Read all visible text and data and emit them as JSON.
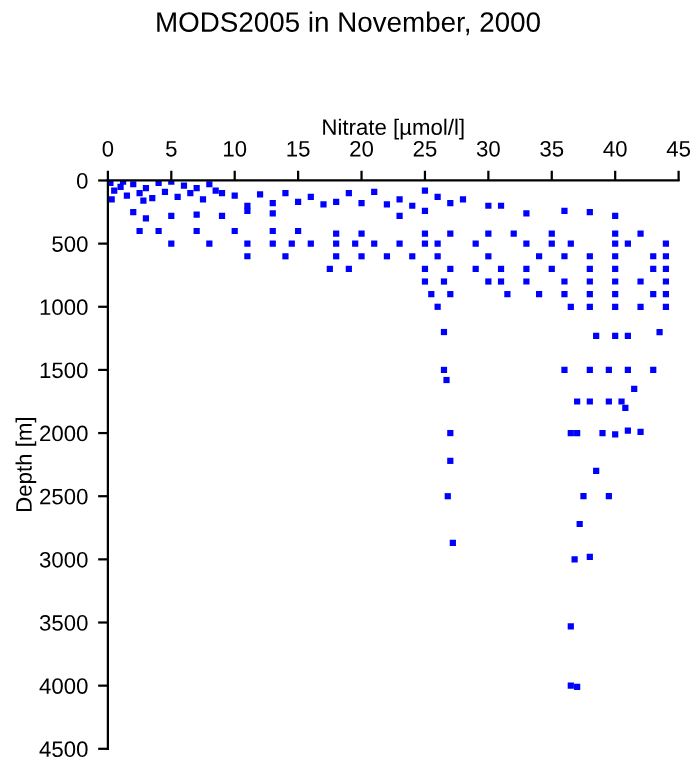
{
  "chart_data": {
    "type": "scatter",
    "title": "MODS2005 in November, 2000",
    "xlabel": "Nitrate [µmol/l]",
    "ylabel": "Depth [m]",
    "xlim": [
      0,
      45
    ],
    "xticks": [
      0,
      5,
      10,
      15,
      20,
      25,
      30,
      35,
      40,
      45
    ],
    "ylim": [
      4500,
      0
    ],
    "yticks": [
      0,
      500,
      1000,
      1500,
      2000,
      2500,
      3000,
      3500,
      4000,
      4500
    ],
    "grid": false,
    "legend": false,
    "marker": "square",
    "series": [
      {
        "color": "#0000ff",
        "x": [
          0.2,
          0.5,
          1,
          1.5,
          2,
          2.5,
          3,
          3.5,
          4,
          4.5,
          5,
          5.5,
          6,
          6.5,
          7,
          7.5,
          8,
          8.5,
          9,
          0.3,
          1.2,
          2.8,
          10,
          11,
          12,
          13,
          14,
          15,
          16,
          17,
          18,
          19,
          20,
          21,
          22,
          23,
          24,
          25,
          26,
          27,
          28,
          30,
          31,
          33,
          36,
          38,
          40,
          2,
          3,
          5,
          7,
          9,
          11,
          13,
          23,
          25,
          2.5,
          4,
          7,
          10,
          13,
          15,
          18,
          20,
          25,
          27,
          30,
          32,
          35,
          40,
          42,
          5,
          8,
          11,
          13,
          14.5,
          16,
          18,
          19.5,
          21,
          23,
          25,
          26,
          29,
          33,
          35,
          36.5,
          40,
          41,
          44,
          11,
          14,
          18,
          20,
          22,
          24,
          26,
          30,
          34,
          36,
          38,
          40,
          43,
          44,
          17.5,
          19,
          25,
          27,
          29,
          31,
          33,
          35,
          38,
          40,
          43,
          44,
          25,
          26.5,
          30,
          31,
          33,
          36,
          38,
          40,
          42,
          44,
          25.5,
          27,
          31.5,
          34,
          36,
          38,
          40,
          43,
          44,
          26,
          36.5,
          38,
          40,
          42,
          44,
          26.5,
          38.5,
          40,
          41,
          43.5,
          26.5,
          36,
          38,
          39.5,
          41,
          43,
          26.7,
          41.5,
          37,
          38,
          39.5,
          40.5,
          40.8,
          27,
          36.5,
          37,
          39,
          40,
          41,
          42,
          27,
          38.5,
          26.8,
          37.5,
          39.5,
          37.2,
          27.2,
          36.8,
          38,
          36.5,
          36.5,
          37
        ],
        "values": [
          20,
          80,
          50,
          120,
          30,
          100,
          60,
          140,
          20,
          90,
          10,
          130,
          40,
          100,
          60,
          150,
          30,
          80,
          100,
          150,
          10,
          160,
          120,
          200,
          110,
          180,
          100,
          170,
          130,
          190,
          170,
          100,
          180,
          90,
          190,
          150,
          200,
          80,
          130,
          180,
          150,
          200,
          200,
          260,
          240,
          250,
          280,
          250,
          300,
          280,
          270,
          280,
          240,
          260,
          280,
          240,
          400,
          400,
          400,
          400,
          400,
          400,
          420,
          420,
          420,
          420,
          420,
          420,
          420,
          420,
          420,
          500,
          500,
          500,
          500,
          500,
          500,
          500,
          500,
          500,
          500,
          500,
          500,
          500,
          500,
          500,
          500,
          500,
          500,
          500,
          600,
          600,
          600,
          600,
          600,
          600,
          600,
          600,
          600,
          600,
          600,
          600,
          600,
          600,
          700,
          700,
          700,
          700,
          700,
          700,
          700,
          700,
          700,
          700,
          700,
          700,
          800,
          800,
          800,
          800,
          800,
          800,
          800,
          800,
          800,
          800,
          900,
          900,
          900,
          900,
          900,
          900,
          900,
          900,
          900,
          1000,
          1000,
          1000,
          1000,
          1000,
          1000,
          1200,
          1230,
          1230,
          1230,
          1200,
          1500,
          1500,
          1500,
          1500,
          1500,
          1500,
          1580,
          1650,
          1750,
          1750,
          1750,
          1750,
          1800,
          2000,
          2000,
          2000,
          2000,
          2010,
          1980,
          1990,
          2220,
          2300,
          2500,
          2500,
          2500,
          2720,
          2870,
          3000,
          2980,
          3530,
          4000,
          4010
        ]
      }
    ]
  }
}
